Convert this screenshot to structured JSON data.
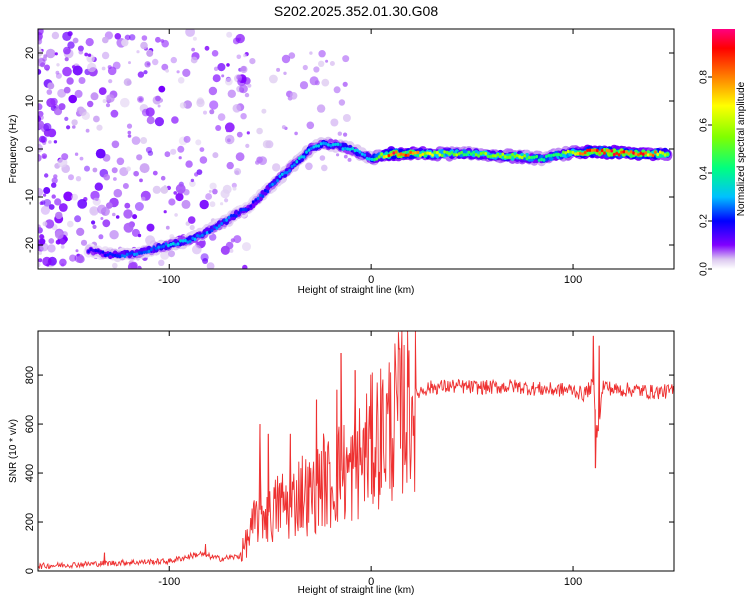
{
  "title": "S202.2025.352.01.30.G08",
  "chart_data": [
    {
      "type": "heatmap",
      "title": "S202.2025.352.01.30.G08",
      "xlabel": "Height of straight line (km)",
      "ylabel": "Frequency (Hz)",
      "xlim": [
        -165,
        150
      ],
      "ylim": [
        -25,
        25
      ],
      "xticks": [
        -100,
        0,
        100
      ],
      "xtick_labels": [
        "-100",
        "0",
        "100"
      ],
      "yticks": [
        -20,
        -10,
        0,
        10,
        20
      ],
      "ytick_labels": [
        "-20",
        "-10",
        "0",
        "10",
        "20"
      ],
      "colorbar": {
        "label": "Normalized spectral amplitude",
        "range": [
          0,
          1
        ],
        "ticks": [
          0.0,
          0.2,
          0.4,
          0.6,
          0.8
        ],
        "tick_labels": [
          "0.0",
          "0.2",
          "0.4",
          "0.6",
          "0.8"
        ],
        "colors": [
          "#ffffff",
          "#dcc8f0",
          "#8000ff",
          "#0000ff",
          "#00c0ff",
          "#00ff80",
          "#80ff00",
          "#ffff00",
          "#ff8000",
          "#ff0000",
          "#ff0080"
        ]
      },
      "ridge": {
        "x": [
          -140,
          -130,
          -120,
          -110,
          -100,
          -90,
          -80,
          -72,
          -60,
          -50,
          -40,
          -30,
          -25,
          -20,
          -15,
          -10,
          -5,
          0,
          10,
          30,
          50,
          70,
          85,
          95,
          110,
          130,
          148
        ],
        "y": [
          -21,
          -22,
          -22,
          -21,
          -20,
          -19,
          -17,
          -15,
          -12,
          -8,
          -4,
          0,
          1,
          1,
          0.5,
          0,
          -1,
          -2,
          -1,
          -1,
          -1,
          -1.5,
          -2,
          -1,
          -0.5,
          -1,
          -1
        ],
        "amplitude": [
          0.15,
          0.2,
          0.25,
          0.25,
          0.3,
          0.3,
          0.25,
          0.25,
          0.2,
          0.25,
          0.3,
          0.3,
          0.3,
          0.3,
          0.3,
          0.3,
          0.3,
          0.3,
          0.9,
          0.6,
          0.5,
          0.6,
          0.4,
          0.5,
          0.9,
          0.9,
          0.6
        ]
      }
    },
    {
      "type": "line",
      "xlabel": "Height of straight line (km)",
      "ylabel": "SNR (10 * v/v)",
      "xlim": [
        -165,
        150
      ],
      "ylim": [
        0,
        980
      ],
      "xticks": [
        -100,
        0,
        100
      ],
      "xtick_labels": [
        "-100",
        "0",
        "100"
      ],
      "yticks": [
        0,
        200,
        400,
        600,
        800
      ],
      "ytick_labels": [
        "0",
        "200",
        "400",
        "600",
        "800"
      ],
      "color": "#ee3030",
      "series": [
        {
          "name": "SNR",
          "x": [
            -165,
            -150,
            -135,
            -120,
            -100,
            -85,
            -80,
            -75,
            -65,
            -60,
            -55,
            -50,
            -45,
            -40,
            -35,
            -30,
            -25,
            -20,
            -15,
            -10,
            -5,
            0,
            5,
            10,
            15,
            20,
            25,
            30,
            40,
            50,
            60,
            70,
            80,
            90,
            100,
            105,
            110,
            112,
            115,
            120,
            130,
            140,
            150
          ],
          "y": [
            20,
            25,
            30,
            35,
            40,
            70,
            60,
            50,
            60,
            150,
            250,
            220,
            280,
            260,
            330,
            300,
            380,
            350,
            410,
            400,
            460,
            520,
            560,
            600,
            650,
            700,
            740,
            750,
            755,
            750,
            750,
            755,
            745,
            740,
            740,
            720,
            760,
            560,
            760,
            740,
            740,
            730,
            735
          ]
        }
      ],
      "spikes": [
        {
          "x": -132,
          "y": 75
        },
        {
          "x": -82,
          "y": 110
        },
        {
          "x": -55,
          "y": 600
        },
        {
          "x": -51,
          "y": 560
        },
        {
          "x": -40,
          "y": 560
        },
        {
          "x": -27,
          "y": 700
        },
        {
          "x": -17,
          "y": 740
        },
        {
          "x": -15,
          "y": 890
        },
        {
          "x": -8,
          "y": 820
        },
        {
          "x": 110,
          "y": 960
        },
        {
          "x": 111,
          "y": 420
        },
        {
          "x": 113,
          "y": 920
        }
      ]
    }
  ]
}
